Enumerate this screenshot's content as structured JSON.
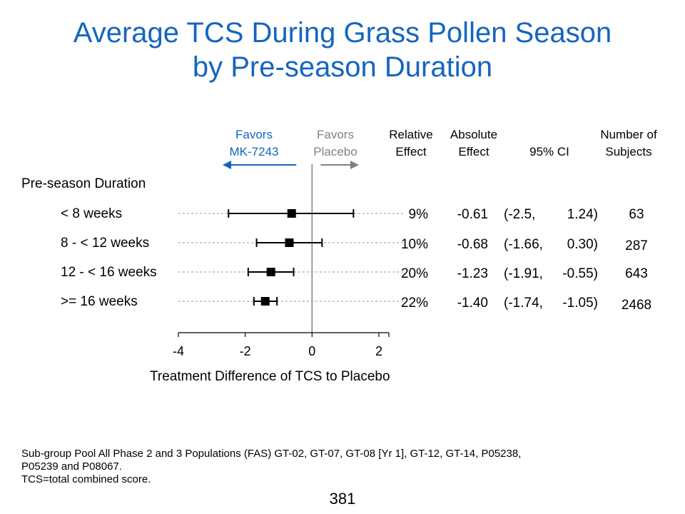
{
  "title": {
    "line1": "Average TCS During Grass Pollen Season",
    "line2": "by Pre-season Duration"
  },
  "headers": {
    "favors_left": [
      "Favors",
      "MK-7243"
    ],
    "favors_right": [
      "Favors",
      "Placebo"
    ],
    "relative": [
      "Relative",
      "Effect"
    ],
    "absolute": [
      "Absolute",
      "Effect"
    ],
    "ci": "95% CI",
    "subjects": [
      "Number of",
      "Subjects"
    ]
  },
  "section_label": "Pre-season Duration",
  "colors": {
    "title": "#1565C0",
    "favors_left": "#1565C0",
    "favors_right": "#808080"
  },
  "chart_data": {
    "type": "forest",
    "xlabel": "Treatment Difference of TCS to Placebo",
    "xlim": [
      -4,
      2.3
    ],
    "xticks": [
      -4,
      -2,
      0,
      2
    ],
    "xtick_labels": [
      "-4",
      "-2",
      "0",
      "2"
    ],
    "rows": [
      {
        "label": "< 8 weeks",
        "estimate": -0.61,
        "ci_low": -2.5,
        "ci_high": 1.24,
        "relative": "9%",
        "absolute": "-0.61",
        "ci_left": "(-2.5,",
        "ci_right": "1.24)",
        "n": "63"
      },
      {
        "label": "8 - < 12 weeks",
        "estimate": -0.68,
        "ci_low": -1.66,
        "ci_high": 0.3,
        "relative": "10%",
        "absolute": "-0.68",
        "ci_left": "(-1.66,",
        "ci_right": "0.30)",
        "n": "287"
      },
      {
        "label": "12 - < 16 weeks",
        "estimate": -1.23,
        "ci_low": -1.91,
        "ci_high": -0.55,
        "relative": "20%",
        "absolute": "-1.23",
        "ci_left": "(-1.91,",
        "ci_right": "-0.55)",
        "n": "643"
      },
      {
        "label": ">= 16 weeks",
        "estimate": -1.4,
        "ci_low": -1.74,
        "ci_high": -1.05,
        "relative": "22%",
        "absolute": "-1.40",
        "ci_left": "(-1.74,",
        "ci_right": "-1.05)",
        "n": "2468"
      }
    ]
  },
  "footnote": {
    "line1": "Sub-group Pool All Phase 2 and 3 Populations (FAS) GT-02, GT-07, GT-08 [Yr 1], GT-12, GT-14, P05238,",
    "line2": "P05239 and P08067.",
    "line3": "TCS=total combined score."
  },
  "page_number": "381"
}
